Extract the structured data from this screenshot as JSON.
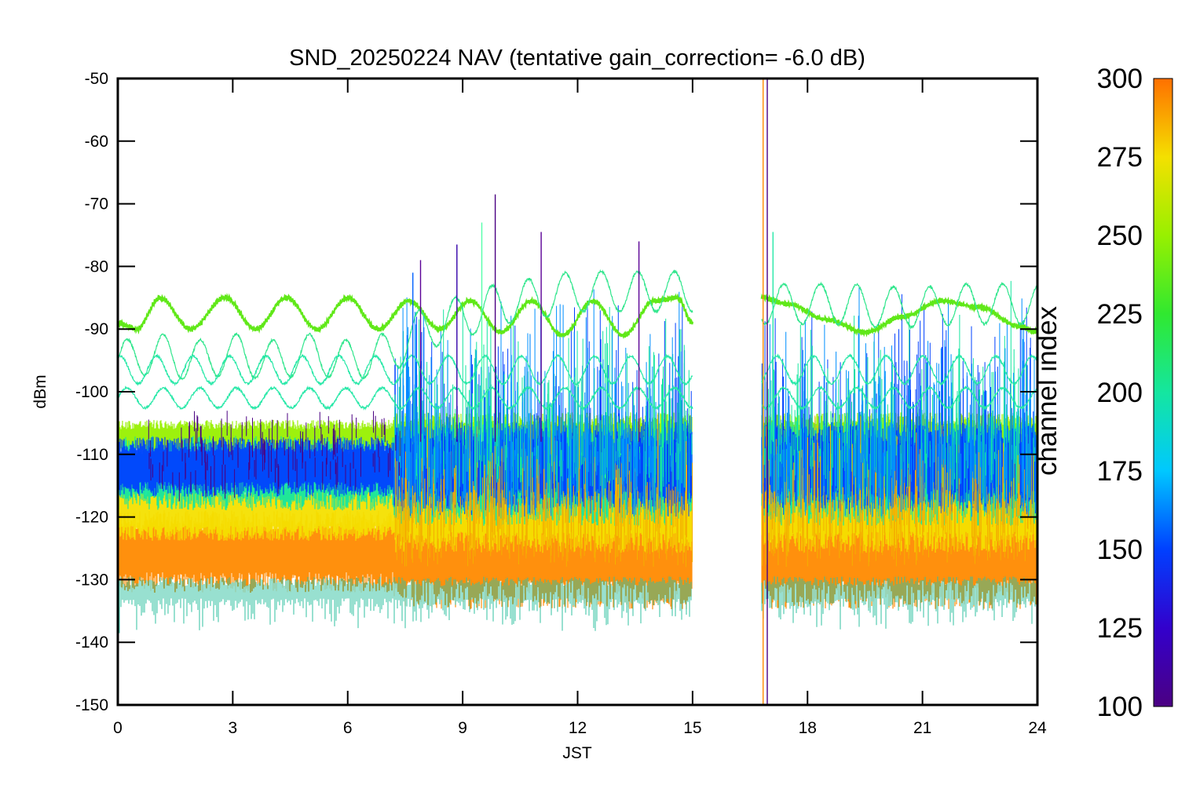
{
  "chart_data": {
    "type": "line",
    "title": "SND_20250224 NAV (tentative gain_correction= -6.0 dB)",
    "xlabel": "JST",
    "ylabel": "dBm",
    "xlim": [
      0,
      24
    ],
    "ylim": [
      -150,
      -50
    ],
    "xticks": [
      0,
      3,
      6,
      9,
      12,
      15,
      18,
      21,
      24
    ],
    "yticks": [
      -50,
      -60,
      -70,
      -80,
      -90,
      -100,
      -110,
      -120,
      -130,
      -140,
      -150
    ],
    "data_gap_jst": [
      15.0,
      16.8
    ],
    "colorbar": {
      "label": "channel index",
      "range": [
        100,
        300
      ],
      "ticks": [
        100,
        125,
        150,
        175,
        200,
        225,
        250,
        275,
        300
      ]
    },
    "bands": [
      {
        "channel_index": 290,
        "color": "#ff8a00",
        "center_dbm": -125.5,
        "spread_dbm": 5.5,
        "note_shape": "noise floor"
      },
      {
        "channel_index": 270,
        "color": "#f4e000",
        "center_dbm": -119,
        "spread_dbm": 4
      },
      {
        "channel_index": 245,
        "color": "#98f000",
        "center_dbm": -107.5,
        "spread_dbm": 2.5
      },
      {
        "channel_index": 200,
        "color": "#14e6a0",
        "center_dbm": -113,
        "spread_dbm": 5
      },
      {
        "channel_index": 145,
        "color": "#0040ff",
        "center_dbm": -112,
        "spread_dbm": 4
      }
    ],
    "series": [
      {
        "channel_index": 235,
        "color": "#60e818",
        "x": [
          0,
          0.5,
          1.1,
          1.9,
          2.8,
          3.6,
          4.4,
          5.2,
          6.0,
          6.8,
          7.6,
          8.4,
          9.2,
          10.0,
          10.8,
          11.6,
          12.4,
          13.2,
          14.0,
          14.6,
          15.0,
          16.8,
          17.5,
          18.5,
          19.5,
          20.5,
          21.5,
          22.5,
          23.5,
          24.0
        ],
        "values": [
          -89,
          -90,
          -85,
          -90,
          -85,
          -90,
          -85,
          -90,
          -85,
          -90,
          -85.5,
          -90,
          -85.5,
          -90.5,
          -85.5,
          -91,
          -85.5,
          -91,
          -85.5,
          -85,
          -89,
          -85,
          -86,
          -88.5,
          -90.5,
          -88,
          -85.5,
          -86.5,
          -89.5,
          -90.5
        ]
      },
      {
        "channel_index": 215,
        "color": "#30e68c",
        "x": [
          0,
          1,
          2,
          3,
          4,
          5,
          6,
          7,
          8,
          9,
          10,
          11,
          12,
          13,
          14,
          15,
          16.8,
          18,
          19,
          20,
          21,
          22,
          23,
          24
        ],
        "values": [
          -95,
          -94,
          -95,
          -94,
          -95,
          -94,
          -95,
          -94,
          -90,
          -88,
          -86,
          -85,
          -84,
          -84,
          -84,
          -84,
          -86,
          -86,
          -86,
          -86.5,
          -86.5,
          -86,
          -86,
          -86
        ]
      },
      {
        "channel_index": 205,
        "color": "#28e8a8",
        "x": [
          0,
          1,
          2,
          3,
          4,
          5,
          6,
          7,
          15,
          16.8,
          17,
          24
        ],
        "values": [
          -101,
          -101,
          -101,
          -101,
          -101,
          -101,
          -101,
          -101,
          -101,
          -101,
          -101,
          -101
        ]
      }
    ],
    "spikes": [
      {
        "x": 9.85,
        "peak_dbm": -68.5,
        "color": "#4b0082"
      },
      {
        "x": 9.5,
        "peak_dbm": -73,
        "color": "#55ffaa"
      },
      {
        "x": 11.05,
        "peak_dbm": -74.5,
        "color": "#5a0096"
      },
      {
        "x": 13.6,
        "peak_dbm": -76,
        "color": "#5a0096"
      },
      {
        "x": 8.85,
        "peak_dbm": -76.5,
        "color": "#3300aa"
      },
      {
        "x": 17.1,
        "peak_dbm": -74.5,
        "color": "#28e8a8"
      },
      {
        "x": 7.7,
        "peak_dbm": -81,
        "color": "#0060ff"
      },
      {
        "x": 7.9,
        "peak_dbm": -79,
        "color": "#5a0096"
      },
      {
        "x": 16.84,
        "peak_dbm": -50,
        "color": "#ff8a00"
      },
      {
        "x": 16.95,
        "peak_dbm": -50,
        "color": "#4b0082"
      }
    ]
  }
}
